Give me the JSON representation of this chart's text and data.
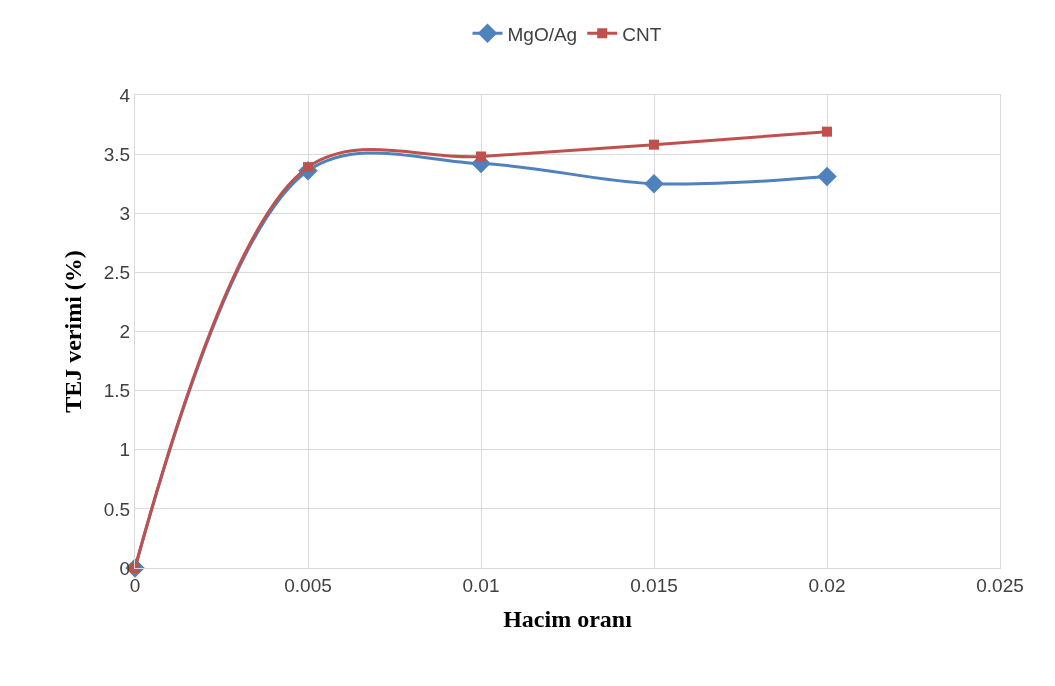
{
  "chart_data": {
    "type": "line",
    "xlabel": "Hacim oranı",
    "ylabel": "TEJ verimi (%)",
    "x": [
      0,
      0.005,
      0.01,
      0.015,
      0.02
    ],
    "series": [
      {
        "name": "MgO/Ag",
        "color": "#4f81bd",
        "marker": "diamond",
        "values": [
          0,
          3.36,
          3.42,
          3.25,
          3.31
        ]
      },
      {
        "name": "CNT",
        "color": "#c0504d",
        "marker": "square",
        "values": [
          0,
          3.39,
          3.48,
          3.58,
          3.69
        ]
      }
    ],
    "xlim": [
      0,
      0.025
    ],
    "xticks": [
      0,
      0.005,
      0.01,
      0.015,
      0.02,
      0.025
    ],
    "ylim": [
      0,
      4
    ],
    "yticks": [
      0,
      0.5,
      1,
      1.5,
      2,
      2.5,
      3,
      3.5,
      4
    ],
    "grid": true,
    "legend": "top",
    "line_style": "solid"
  }
}
